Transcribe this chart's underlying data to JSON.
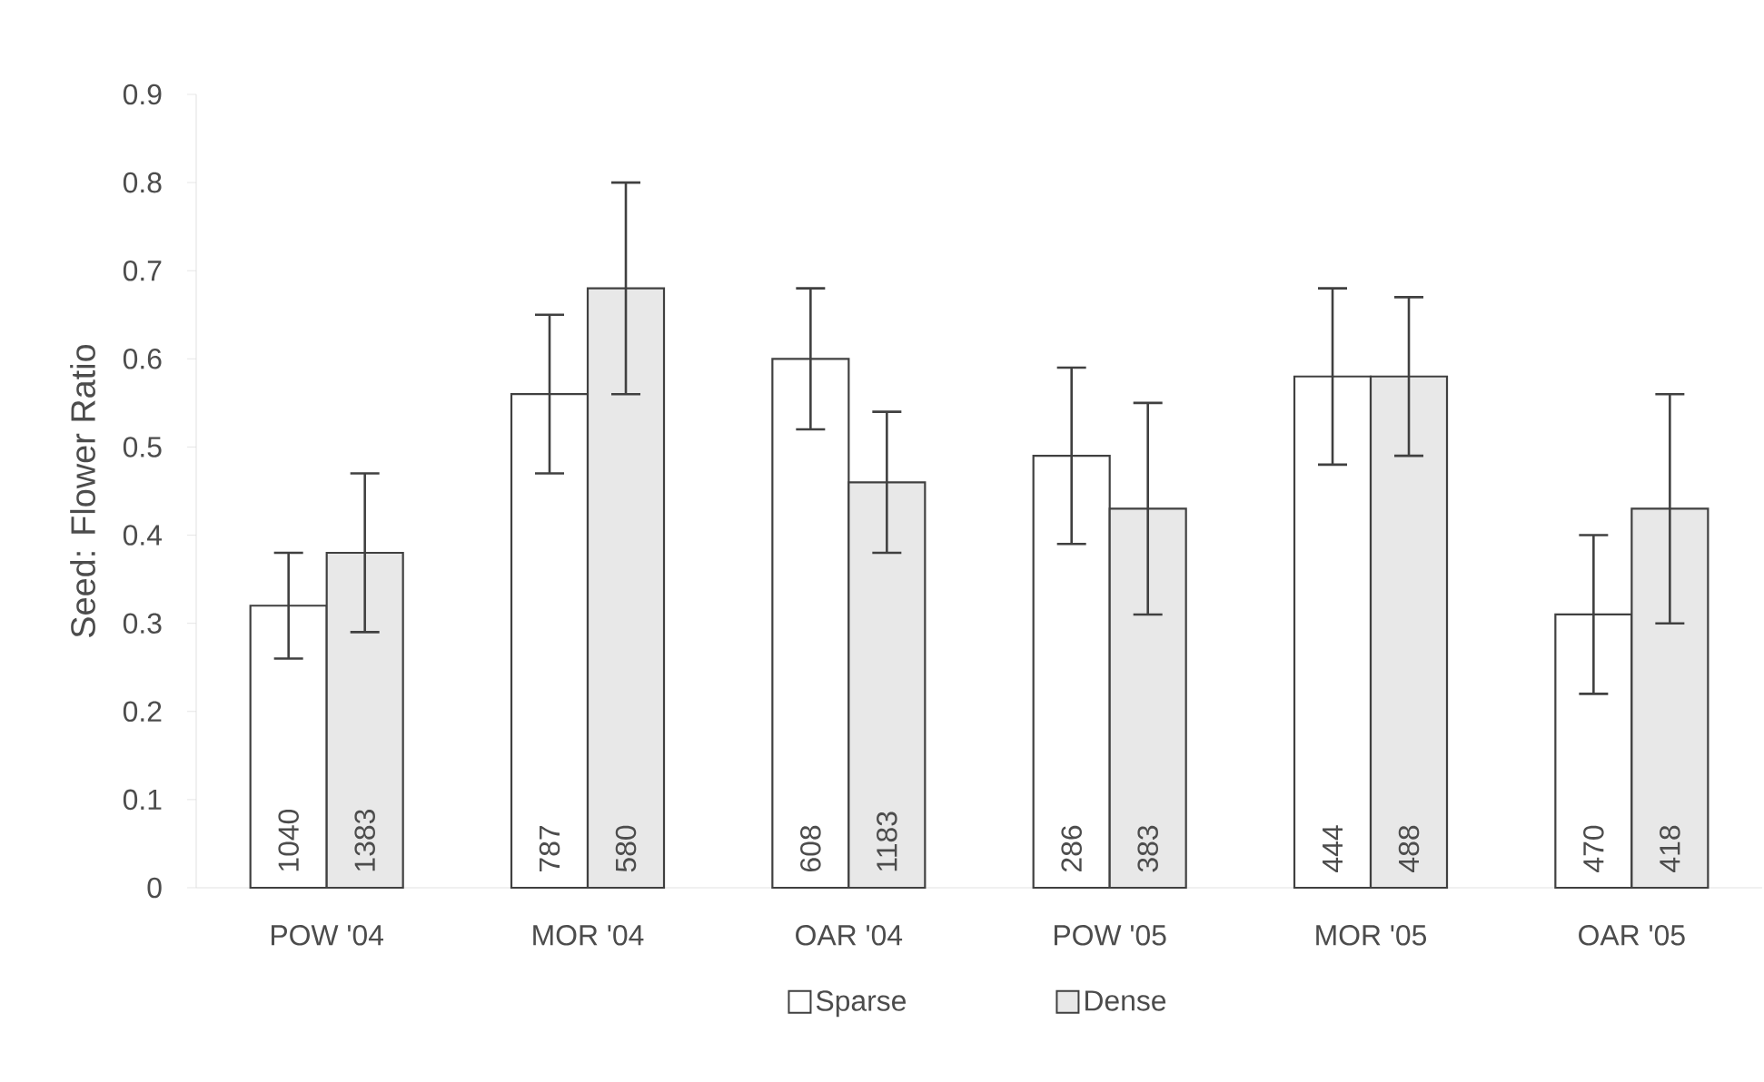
{
  "chart_data": {
    "type": "bar",
    "ylabel": "Seed: Flower Ratio",
    "categories": [
      "POW '04",
      "MOR '04",
      "OAR '04",
      "POW '05",
      "MOR '05",
      "OAR '05"
    ],
    "series": [
      {
        "name": "Sparse",
        "color": "#ffffff",
        "values": [
          0.32,
          0.56,
          0.6,
          0.49,
          0.58,
          0.31
        ],
        "errors": [
          [
            0.26,
            0.38
          ],
          [
            0.47,
            0.65
          ],
          [
            0.52,
            0.68
          ],
          [
            0.39,
            0.59
          ],
          [
            0.48,
            0.68
          ],
          [
            0.22,
            0.4
          ]
        ]
      },
      {
        "name": "Dense",
        "color": "#e8e8e8",
        "values": [
          0.38,
          0.68,
          0.46,
          0.43,
          0.58,
          0.43
        ],
        "errors": [
          [
            0.29,
            0.47
          ],
          [
            0.56,
            0.8
          ],
          [
            0.38,
            0.54
          ],
          [
            0.31,
            0.55
          ],
          [
            0.49,
            0.67
          ],
          [
            0.3,
            0.56
          ]
        ]
      }
    ],
    "annotations": [
      {
        "text": "1040",
        "x": "POW '04",
        "y": 0
      },
      {
        "text": "1383",
        "x": "POW '04",
        "y": 0
      },
      {
        "text": "787",
        "x": "MOR '04",
        "y": 0
      },
      {
        "text": "580",
        "x": "MOR '04",
        "y": 0
      },
      {
        "text": "608",
        "x": "OAR '04",
        "y": 0
      },
      {
        "text": "1183",
        "x": "OAR '04",
        "y": 0
      },
      {
        "text": "286",
        "x": "POW '05",
        "y": 0
      },
      {
        "text": "383",
        "x": "POW '05",
        "y": 0
      },
      {
        "text": "444",
        "x": "MOR '05",
        "y": 0
      },
      {
        "text": "488",
        "x": "MOR '05",
        "y": 0
      },
      {
        "text": "470",
        "x": "OAR '05",
        "y": 0
      },
      {
        "text": "418",
        "x": "OAR '05",
        "y": 0
      }
    ],
    "ylim": [
      0,
      0.9
    ],
    "yticks": [
      0,
      0.1,
      0.2,
      0.3,
      0.4,
      0.5,
      0.6,
      0.7,
      0.8,
      0.9
    ],
    "grid": false,
    "legend": "bottom"
  }
}
